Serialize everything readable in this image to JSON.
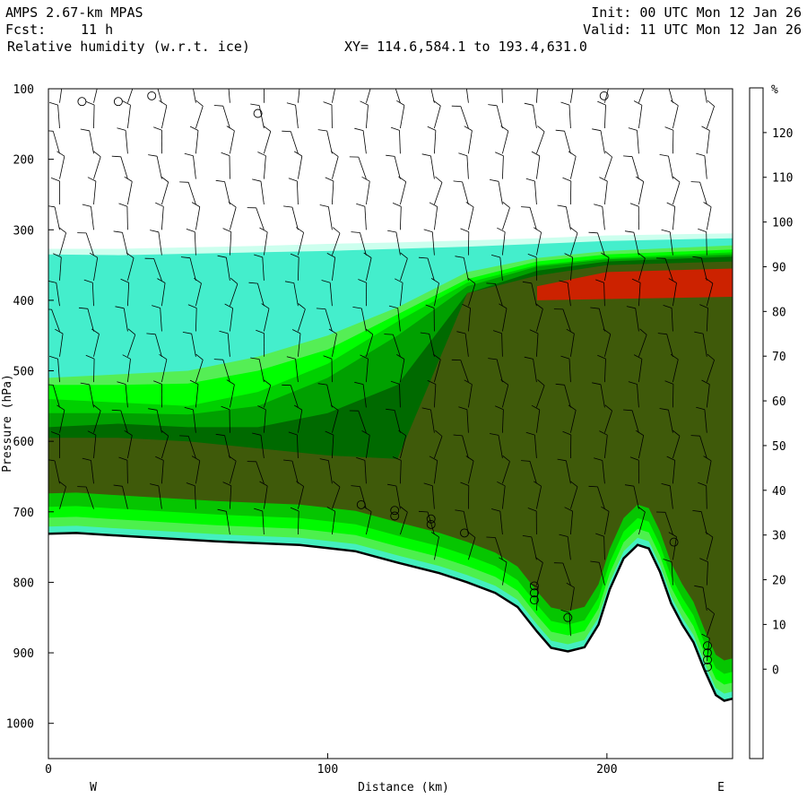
{
  "header": {
    "model": "AMPS 2.67-km MPAS",
    "forecast_label": "Fcst:",
    "forecast_value": "11 h",
    "variable": "Relative humidity (w.r.t. ice)",
    "xy_range": "XY= 114.6,584.1 to 193.4,631.0",
    "init": "Init: 00 UTC Mon 12 Jan 26",
    "valid": "Valid: 11 UTC Mon 12 Jan 26"
  },
  "chart_data": {
    "type": "heatmap",
    "title": "Relative humidity (w.r.t. ice)",
    "xlabel": "Distance (km)",
    "ylabel": "Pressure (hPa)",
    "xlim": [
      0,
      245
    ],
    "ylim": [
      1050,
      100
    ],
    "x_ticks": [
      "0",
      "100",
      "200"
    ],
    "y_ticks": [
      "100",
      "200",
      "300",
      "400",
      "500",
      "600",
      "700",
      "800",
      "900",
      "1000"
    ],
    "direction_left": "W",
    "direction_right": "E",
    "legend": {
      "unit": "%",
      "levels": [
        "120",
        "110",
        "100",
        "90",
        "80",
        "70",
        "60",
        "50",
        "40",
        "30",
        "20",
        "10",
        "0"
      ],
      "colors": [
        "#ff0000",
        "#cc2200",
        "#3f5a0a",
        "#006a00",
        "#00a000",
        "#00d000",
        "#00ff00",
        "#55ee55",
        "#44dd88",
        "#44eecc",
        "#ccffee",
        "#ffffff",
        "#ffffff",
        "#ffffff",
        "#ffffff"
      ]
    },
    "terrain_pressure": [
      [
        0,
        731
      ],
      [
        10,
        730
      ],
      [
        30,
        735
      ],
      [
        60,
        742
      ],
      [
        90,
        747
      ],
      [
        110,
        756
      ],
      [
        125,
        772
      ],
      [
        140,
        787
      ],
      [
        150,
        800
      ],
      [
        160,
        815
      ],
      [
        168,
        835
      ],
      [
        175,
        870
      ],
      [
        180,
        893
      ],
      [
        186,
        898
      ],
      [
        192,
        892
      ],
      [
        197,
        860
      ],
      [
        201,
        810
      ],
      [
        206,
        766
      ],
      [
        211,
        747
      ],
      [
        215,
        752
      ],
      [
        219,
        785
      ],
      [
        223,
        830
      ],
      [
        227,
        860
      ],
      [
        231,
        885
      ],
      [
        235,
        925
      ],
      [
        239,
        960
      ],
      [
        242,
        968
      ],
      [
        245,
        965
      ]
    ],
    "rh_bands": [
      {
        "range": "30-40 %",
        "p_top": [
          327,
          327,
          325,
          323,
          320,
          318,
          315,
          312,
          308,
          305
        ]
      },
      {
        "range": "40-50 %",
        "p_top": [
          335,
          336,
          334,
          332,
          330,
          327,
          324,
          320,
          316,
          312
        ]
      },
      {
        "range": "50-60 %",
        "p_top": [
          510,
          505,
          500,
          480,
          450,
          410,
          360,
          340,
          330,
          322
        ]
      },
      {
        "range": "60-70 %",
        "p_top": [
          520,
          520,
          518,
          500,
          470,
          420,
          370,
          345,
          335,
          328
        ]
      },
      {
        "range": "70-80 %",
        "p_top": [
          540,
          545,
          550,
          530,
          490,
          430,
          375,
          350,
          340,
          332
        ]
      },
      {
        "range": "80-90 %",
        "p_top": [
          560,
          560,
          562,
          550,
          510,
          450,
          380,
          352,
          342,
          335
        ]
      },
      {
        "range": "90-100 %",
        "p_top": [
          580,
          575,
          580,
          580,
          560,
          520,
          390,
          358,
          345,
          338
        ]
      },
      {
        "range": "100-110 %",
        "p_top": [
          595,
          595,
          600,
          610,
          620,
          625,
          390,
          365,
          350,
          345
        ]
      },
      {
        "range": "110-120 %",
        "p_top": [
          null,
          null,
          null,
          null,
          null,
          null,
          null,
          380,
          360,
          355
        ]
      }
    ],
    "band_x": [
      0,
      25,
      50,
      75,
      100,
      125,
      150,
      175,
      200,
      245
    ],
    "calm_marks_km": [
      12,
      25,
      37,
      75,
      112,
      124,
      124,
      137,
      137,
      149,
      174,
      174,
      174,
      186,
      199,
      224,
      236,
      236,
      236,
      236
    ]
  }
}
